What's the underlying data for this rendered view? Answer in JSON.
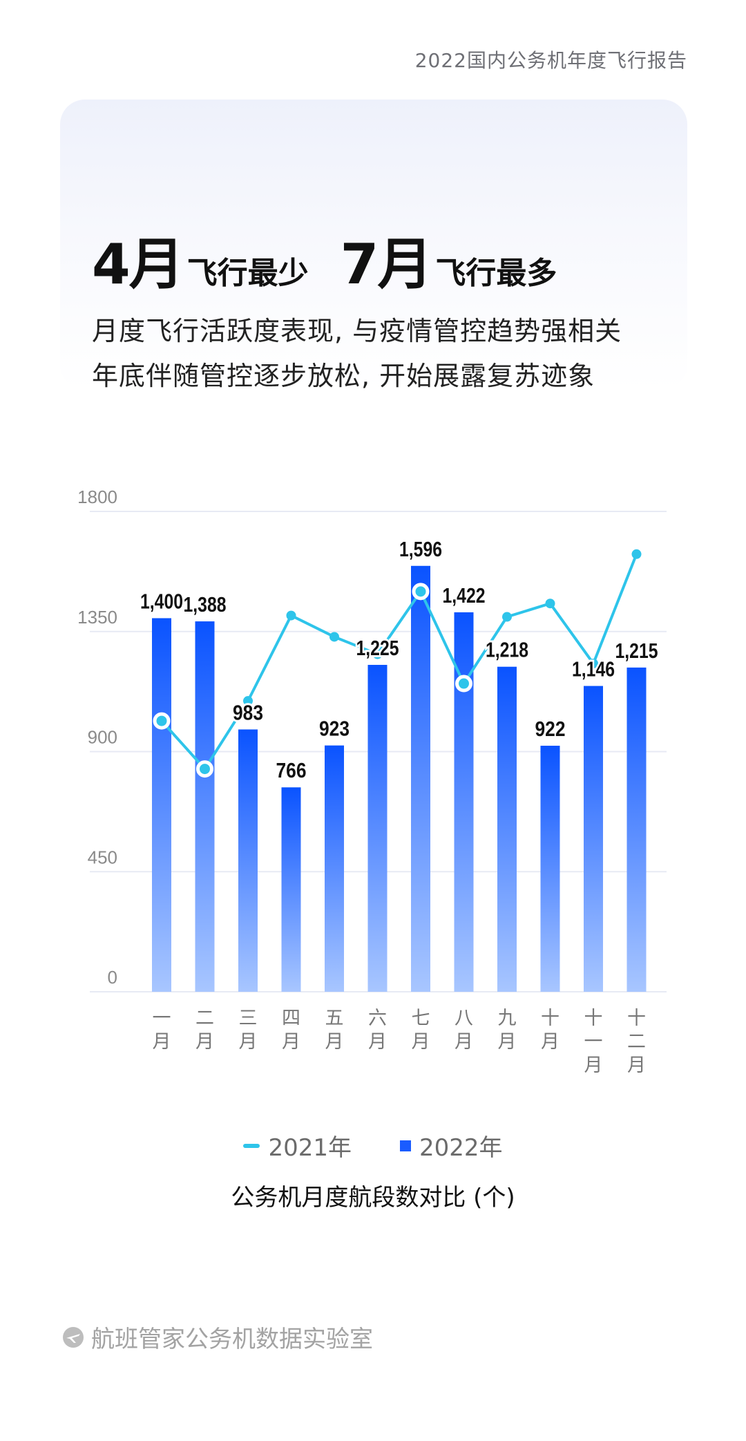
{
  "header": {
    "report_title": "2022国内公务机年度飞行报告"
  },
  "highlight": {
    "min_month": "4月",
    "min_text": "飞行最少",
    "max_month": "7月",
    "max_text": "飞行最多"
  },
  "description": {
    "line1": "月度飞行活跃度表现, 与疫情管控趋势强相关",
    "line2": "年底伴随管控逐步放松, 开始展露复苏迹象"
  },
  "colors": {
    "bar_top": "#0a53ff",
    "bar_bottom": "#a8c6ff",
    "line_2021": "#2ec4ea",
    "grid": "#e7eaf4",
    "tick_text": "#8a8a8a"
  },
  "chart_data": {
    "type": "bar",
    "title": "公务机月度航段数对比 (个)",
    "categories": [
      "一月",
      "二月",
      "三月",
      "四月",
      "五月",
      "六月",
      "七月",
      "八月",
      "九月",
      "十月",
      "十一月",
      "十二月"
    ],
    "yticks": [
      "0",
      "450",
      "900",
      "1350",
      "1800"
    ],
    "ylim": [
      0,
      1800
    ],
    "grid": true,
    "legend_position": "bottom",
    "series": [
      {
        "name": "2022年",
        "type": "bar",
        "values": [
          1400,
          1388,
          983,
          766,
          923,
          1225,
          1596,
          1422,
          1218,
          922,
          1146,
          1215
        ],
        "labels": [
          "1,400",
          "1,388",
          "983",
          "766",
          "923",
          "1,225",
          "1,596",
          "1,422",
          "1,218",
          "922",
          "1,146",
          "1,215"
        ]
      },
      {
        "name": "2021年",
        "type": "line",
        "values": [
          1015,
          835,
          1090,
          1410,
          1330,
          1265,
          1500,
          1155,
          1405,
          1455,
          1230,
          1640
        ]
      }
    ]
  },
  "legend": {
    "line_label": "2021年",
    "bar_label": "2022年"
  },
  "footer": {
    "text": "航班管家公务机数据实验室"
  }
}
